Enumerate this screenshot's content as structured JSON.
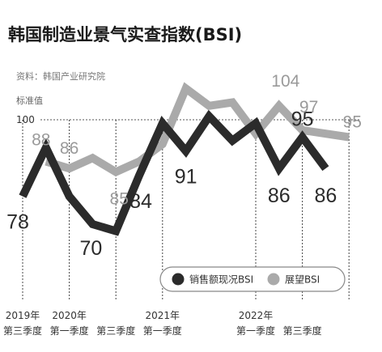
{
  "chart_data": {
    "type": "line",
    "title": "韩国制造业景气实查指数(BSI)",
    "source": "资料：韩国产业研究院",
    "reference_line": {
      "name": "标准值",
      "value": 100
    },
    "ylim": [
      60,
      115
    ],
    "x": [
      "2019Q3",
      "2019Q4",
      "2020Q1",
      "2020Q2",
      "2020Q3",
      "2020Q4",
      "2021Q1",
      "2021Q2",
      "2021Q3",
      "2021Q4",
      "2022Q1",
      "2022Q2",
      "2022Q3",
      "2022Q4",
      "2023Q1"
    ],
    "series": [
      {
        "name": "销售额现况BSI",
        "color": "#2b2b2b",
        "values": [
          78,
          92,
          78,
          70,
          68,
          84,
          99,
          91,
          101,
          94,
          99,
          86,
          95,
          86,
          null
        ],
        "labels": [
          {
            "index": 0,
            "text": "78"
          },
          {
            "index": 3,
            "text": "70"
          },
          {
            "index": 5,
            "text": "84"
          },
          {
            "index": 7,
            "text": "91"
          },
          {
            "index": 11,
            "text": "86"
          },
          {
            "index": 12,
            "text": "95"
          },
          {
            "index": 13,
            "text": "86"
          }
        ]
      },
      {
        "name": "展望BSI",
        "color": "#aaaaaa",
        "values": [
          null,
          88,
          86,
          89,
          85,
          88,
          93,
          109,
          104,
          105,
          96,
          104,
          97,
          96,
          95
        ],
        "labels": [
          {
            "index": 1,
            "text": "88"
          },
          {
            "index": 2,
            "text": "86"
          },
          {
            "index": 4,
            "text": "85"
          },
          {
            "index": 11,
            "text": "104"
          },
          {
            "index": 12,
            "text": "97"
          },
          {
            "index": 14,
            "text": "95"
          }
        ]
      }
    ],
    "x_tick_labels": [
      {
        "index": 0,
        "year": "2019年",
        "quarter": "第三季度"
      },
      {
        "index": 2,
        "year": "2020年",
        "quarter": "第一季度"
      },
      {
        "index": 4,
        "year": "",
        "quarter": "第三季度"
      },
      {
        "index": 6,
        "year": "2021年",
        "quarter": "第一季度"
      },
      {
        "index": 10,
        "year": "2022年",
        "quarter": "第一季度"
      },
      {
        "index": 12,
        "year": "",
        "quarter": "第三季度"
      }
    ],
    "legend": {
      "placement": "bottom-right"
    }
  }
}
